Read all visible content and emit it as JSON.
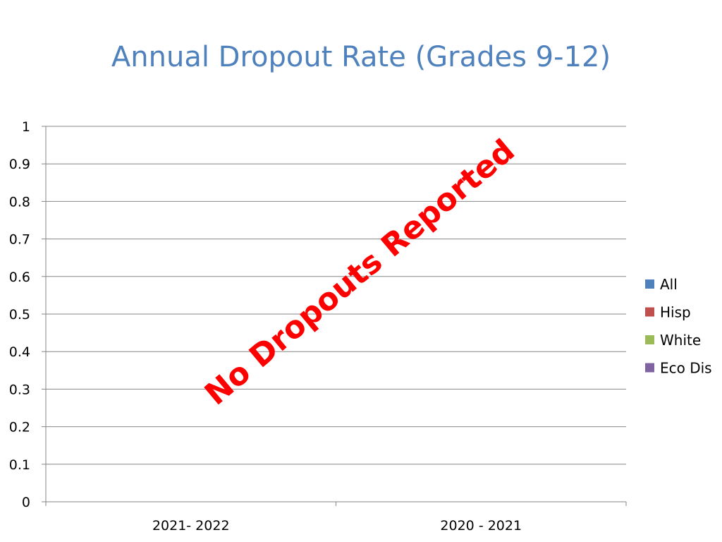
{
  "chart_data": {
    "type": "bar",
    "title": "Annual Dropout Rate (Grades 9-12)",
    "categories": [
      "2021- 2022",
      "2020 - 2021"
    ],
    "series": [
      {
        "name": "All",
        "color": "#4F81BD",
        "values": [
          0,
          0
        ]
      },
      {
        "name": "Hisp",
        "color": "#C0504D",
        "values": [
          0,
          0
        ]
      },
      {
        "name": "White",
        "color": "#9BBB59",
        "values": [
          0,
          0
        ]
      },
      {
        "name": "Eco Dis",
        "color": "#8064A2",
        "values": [
          0,
          0
        ]
      }
    ],
    "yticks": [
      "0",
      "0.1",
      "0.2",
      "0.3",
      "0.4",
      "0.5",
      "0.6",
      "0.7",
      "0.8",
      "0.9",
      "1"
    ],
    "ylim": [
      0,
      1
    ],
    "grid": true,
    "legend_position": "right",
    "annotation": "No Dropouts Reported",
    "annotation_color": "#FF0000"
  }
}
